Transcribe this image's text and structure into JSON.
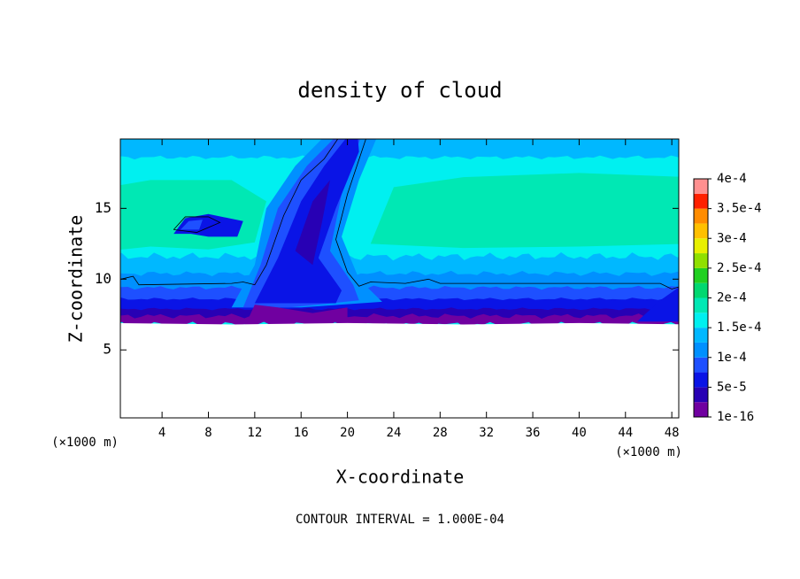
{
  "chart_data": {
    "type": "contour",
    "title": "density of cloud",
    "x_label": "X-coordinate",
    "y_label": "Z-coordinate",
    "x_unit": "(×1000 m)",
    "annotation": "CONTOUR INTERVAL = 1.000E-04",
    "xlim": [
      0.4,
      48.6
    ],
    "ylim": [
      0.2,
      19.9
    ],
    "xticks": [
      4,
      8,
      12,
      16,
      20,
      24,
      28,
      32,
      36,
      40,
      44,
      48
    ],
    "yticks": [
      5,
      10,
      15
    ],
    "colorbar": {
      "ticks": [
        1e-16,
        {
          "value": 5e-05,
          "label": "5e-5"
        },
        {
          "value": 0.0001,
          "label": "1e-4"
        },
        {
          "value": 0.00015,
          "label": "1.5e-4"
        },
        {
          "value": 0.0002,
          "label": "2e-4"
        },
        {
          "value": 0.00025,
          "label": "2.5e-4"
        },
        {
          "value": 0.0003,
          "label": "3e-4"
        },
        {
          "value": 0.00035,
          "label": "3.5e-4"
        },
        {
          "value": 0.0004,
          "label": "4e-4"
        }
      ],
      "colors": [
        "#7000a0",
        "#2800b4",
        "#0a14e6",
        "#1e50ff",
        "#0090ff",
        "#00b8ff",
        "#00f0f0",
        "#00e8b4",
        "#00d870",
        "#20d020",
        "#90e000",
        "#e8f000",
        "#ffc000",
        "#ff8c00",
        "#ff2000",
        "#ff9090"
      ]
    }
  }
}
